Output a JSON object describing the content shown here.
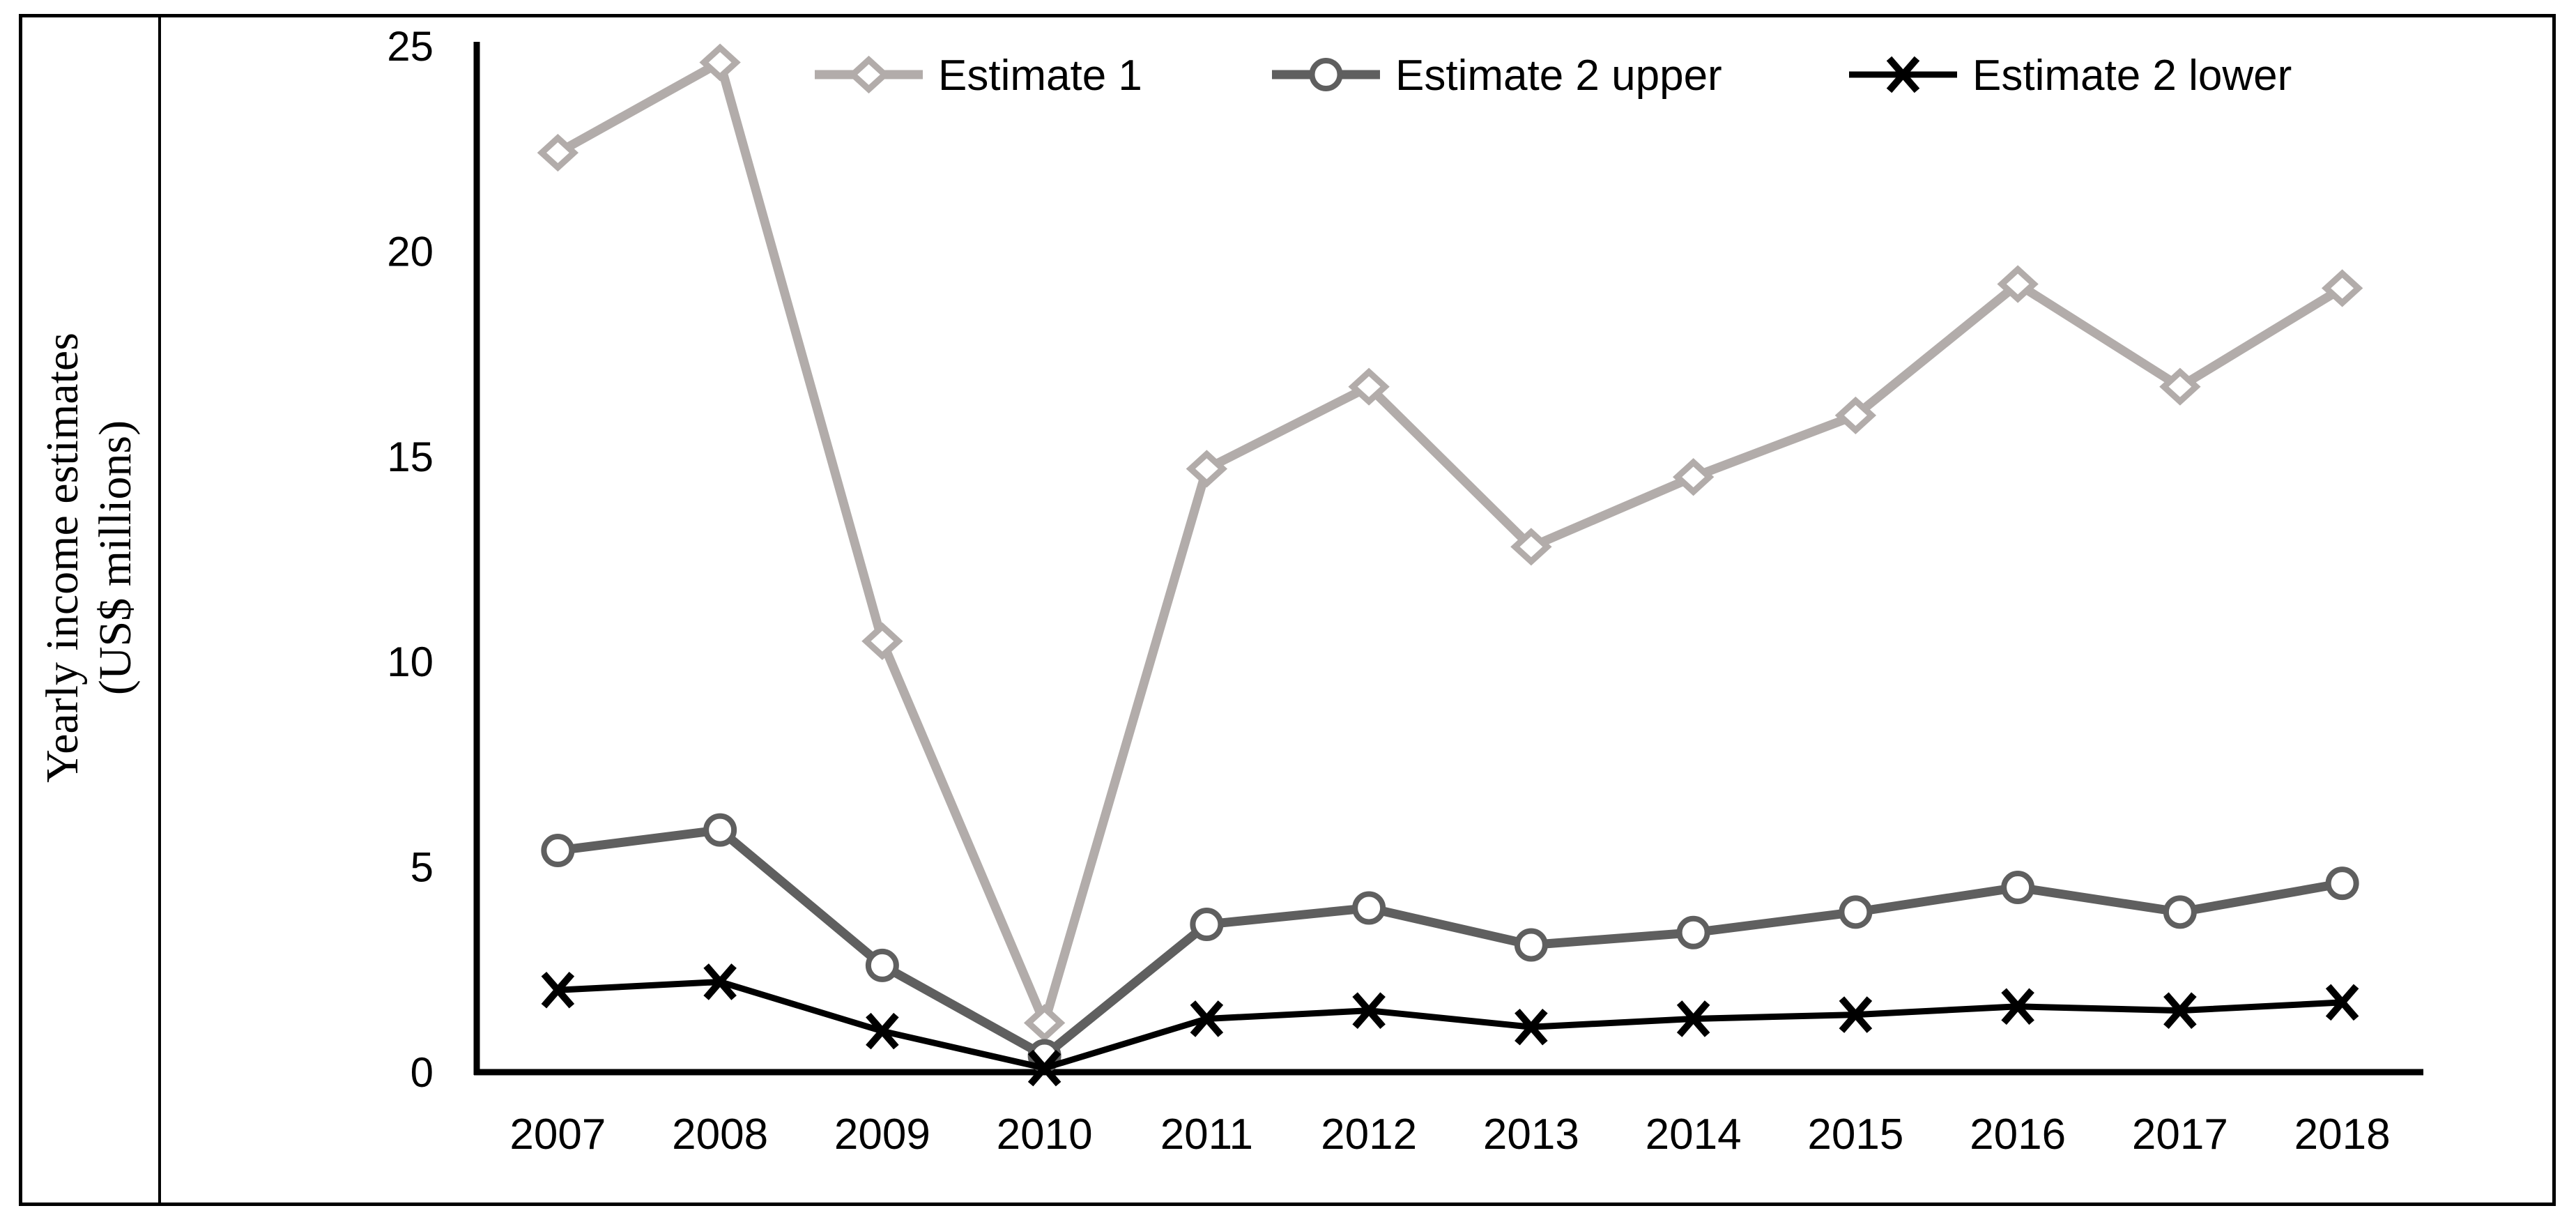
{
  "figure": {
    "ylabel_line1": "Yearly income estimates",
    "ylabel_line2": "(US$ millions)"
  },
  "chart_data": {
    "type": "line",
    "title": "",
    "xlabel": "",
    "ylabel": "Yearly income estimates (US$ millions)",
    "categories": [
      "2007",
      "2008",
      "2009",
      "2010",
      "2011",
      "2012",
      "2013",
      "2014",
      "2015",
      "2016",
      "2017",
      "2018"
    ],
    "series": [
      {
        "name": "Estimate 1",
        "marker": "diamond",
        "color": "#b2acaa",
        "values": [
          22.4,
          24.6,
          10.5,
          1.2,
          14.7,
          16.7,
          12.8,
          14.5,
          16.0,
          19.2,
          16.7,
          19.1
        ]
      },
      {
        "name": "Estimate 2 upper",
        "marker": "circle",
        "color": "#5f5f5f",
        "values": [
          5.4,
          5.9,
          2.6,
          0.4,
          3.6,
          4.0,
          3.1,
          3.4,
          3.9,
          4.5,
          3.9,
          4.6
        ]
      },
      {
        "name": "Estimate 2 lower",
        "marker": "x",
        "color": "#000000",
        "values": [
          2.0,
          2.2,
          1.0,
          0.1,
          1.3,
          1.5,
          1.1,
          1.3,
          1.4,
          1.6,
          1.5,
          1.7
        ]
      }
    ],
    "ylim": [
      0,
      25
    ],
    "yticks": [
      0,
      5,
      10,
      15,
      20,
      25
    ],
    "grid": false,
    "legend_position": "top-center-inside",
    "axis_color": "#000000",
    "text_color": "#000000"
  }
}
